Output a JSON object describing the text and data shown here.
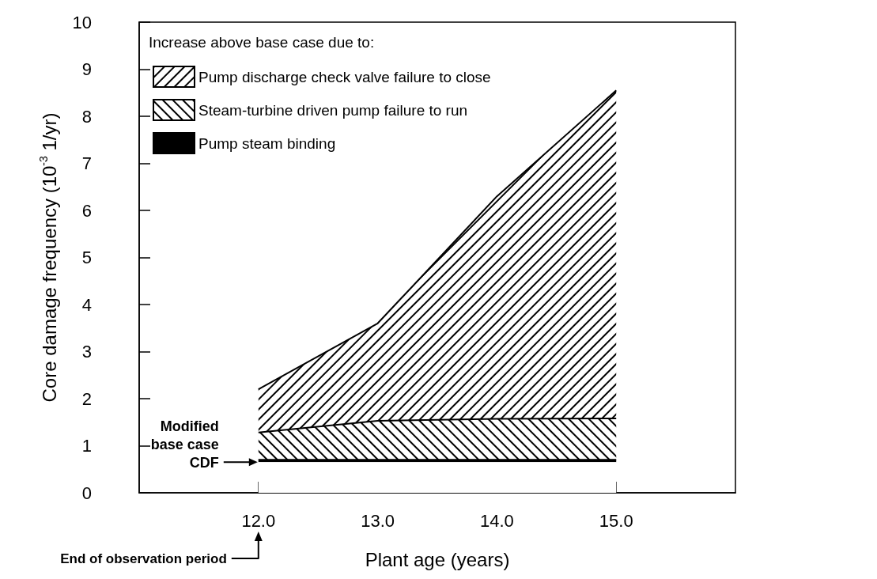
{
  "chart_data": {
    "type": "area",
    "stacked": true,
    "legend": "top left",
    "legend_title": "Increase above base case due to:",
    "xlabel": "Plant age (years)",
    "ylabel": "Core damage frequency (10$^{-3}$ 1/yr)",
    "x": [
      12,
      13,
      14,
      15
    ],
    "series": [
      {
        "color": "#ffffff",
        "values": [
          0.65,
          0.65,
          0.65,
          0.65
        ]
      },
      {
        "name": "Pump steam binding",
        "color": "#000000",
        "values": [
          0.05,
          0.05,
          0.05,
          0.05
        ]
      },
      {
        "name": "Steam-turbine driven pump failure to run",
        "color": "#000000",
        "values": [
          0.58,
          0.83,
          0.87,
          0.88
        ]
      },
      {
        "name": "Pump discharge check valve failure to close",
        "color": "#000000",
        "values": [
          0.92,
          2.07,
          4.73,
          6.97
        ]
      }
    ],
    "xlim": [
      11,
      16
    ],
    "xticks": [
      {
        "value": 12,
        "label": "12.0"
      },
      {
        "value": 13,
        "label": "13.0"
      },
      {
        "value": 14,
        "label": "14.0"
      },
      {
        "value": 15,
        "label": "15.0"
      }
    ],
    "ylim": [
      0,
      10
    ],
    "yticks": [
      0,
      1,
      2,
      3,
      4,
      5,
      6,
      7,
      8,
      9,
      10
    ],
    "grid": false,
    "annotations": [
      {
        "text": "Modified\nbase case\nCDF",
        "x": 12,
        "y": 0.65
      },
      "End of observation period"
    ]
  }
}
